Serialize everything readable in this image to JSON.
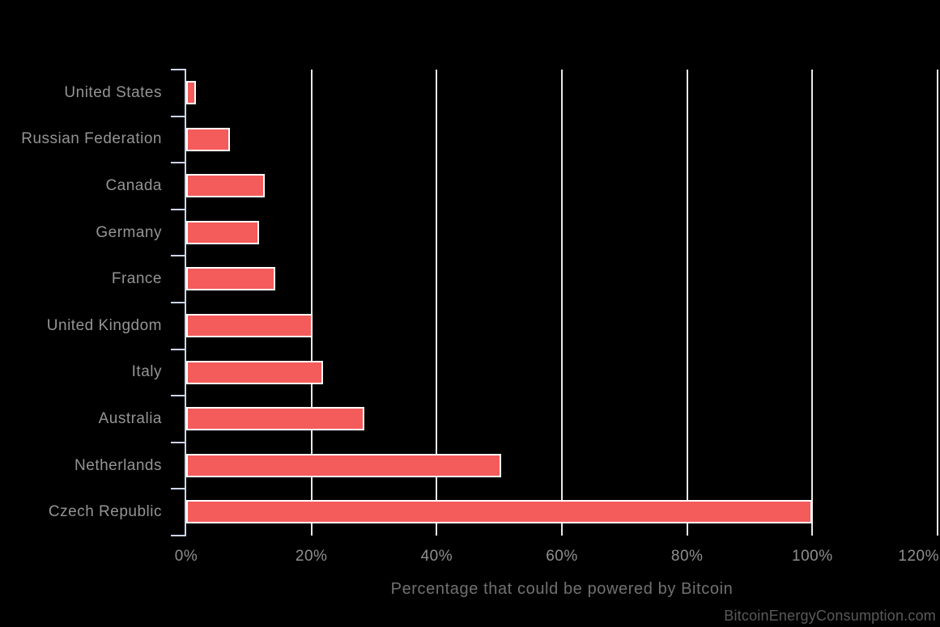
{
  "chart_data": {
    "type": "bar",
    "orientation": "horizontal",
    "title": "",
    "categories": [
      "United States",
      "Russian Federation",
      "Canada",
      "Germany",
      "France",
      "United Kingdom",
      "Italy",
      "Australia",
      "Netherlands",
      "Czech Republic"
    ],
    "values": [
      1.6,
      7,
      12.6,
      11.7,
      14.2,
      20.2,
      21.8,
      28.4,
      50.3,
      100
    ],
    "xlabel": "Percentage that could be powered by Bitcoin",
    "ylabel": "",
    "xlim": [
      0,
      120
    ],
    "x_ticks": [
      0,
      20,
      40,
      60,
      80,
      100,
      120
    ],
    "x_tick_labels": [
      "0%",
      "20%",
      "40%",
      "60%",
      "80%",
      "100%",
      "120%"
    ],
    "grid": true,
    "legend": false,
    "background_color": "#000000",
    "bar_color": "#f45b5b",
    "bar_border_color": "#ffffff",
    "gridline_color": "#e8e8e8",
    "axis_line_color": "#ccd6eb",
    "label_color": "#949494",
    "tick_label_color": "#8f8f8f",
    "axis_title_color": "#717171"
  },
  "watermark": {
    "text": "BitcoinEnergyConsumption.com",
    "color": "#5a5a5a"
  }
}
